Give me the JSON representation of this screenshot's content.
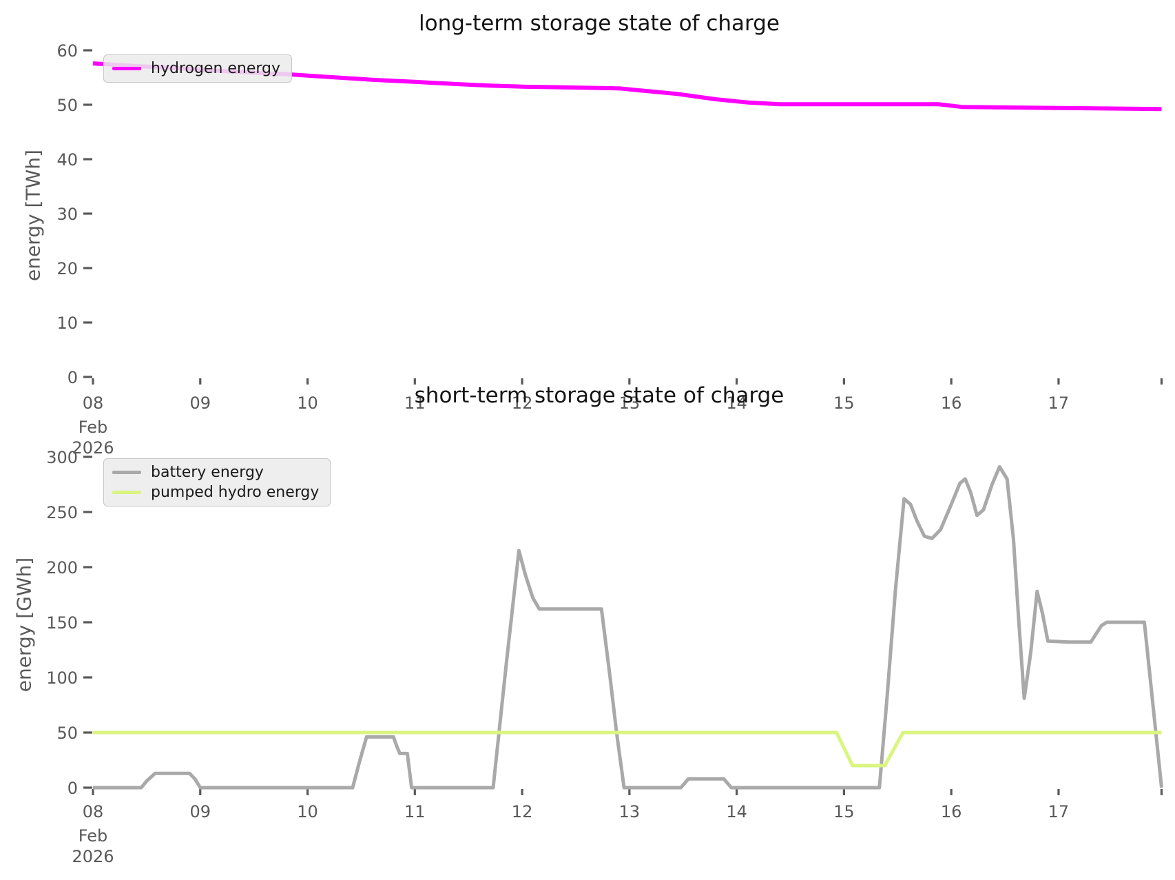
{
  "figure": {
    "background": "#ffffff",
    "tick_color": "#595959",
    "title_color": "#141414"
  },
  "chart_data": [
    {
      "type": "line",
      "title": "long-term storage state of charge",
      "xlabel": "",
      "ylabel": "energy [TWh]",
      "ylim": [
        0,
        60
      ],
      "yticks": [
        0,
        10,
        20,
        30,
        40,
        50,
        60
      ],
      "x_axis": {
        "tick_days": [
          8,
          9,
          10,
          11,
          12,
          13,
          14,
          15,
          16,
          17
        ],
        "tick_labels": [
          "08",
          "09",
          "10",
          "11",
          "12",
          "13",
          "14",
          "15",
          "16",
          "17"
        ],
        "first_tick_sublabels": [
          "Feb",
          "2026"
        ],
        "axis_end_day": 17.96
      },
      "grid": false,
      "legend": {
        "position": "upper left",
        "entries": [
          {
            "label": "hydrogen energy",
            "color": "#ff00ff"
          }
        ]
      },
      "series": [
        {
          "name": "hydrogen energy",
          "color": "#ff00ff",
          "width": 6,
          "unit": "TWh",
          "points": [
            [
              8.0,
              57.6
            ],
            [
              8.4,
              57.1
            ],
            [
              8.8,
              56.7
            ],
            [
              9.2,
              56.2
            ],
            [
              9.6,
              55.8
            ],
            [
              9.81,
              55.6
            ],
            [
              10.2,
              55.1
            ],
            [
              10.6,
              54.6
            ],
            [
              11.0,
              54.2
            ],
            [
              11.39,
              53.8
            ],
            [
              11.7,
              53.5
            ],
            [
              12.03,
              53.3
            ],
            [
              12.4,
              53.2
            ],
            [
              12.91,
              53.0
            ],
            [
              13.12,
              52.6
            ],
            [
              13.44,
              52.0
            ],
            [
              13.81,
              51.0
            ],
            [
              14.11,
              50.4
            ],
            [
              14.4,
              50.1
            ],
            [
              15.88,
              50.1
            ],
            [
              16.1,
              49.6
            ],
            [
              16.5,
              49.5
            ],
            [
              17.0,
              49.4
            ],
            [
              17.5,
              49.3
            ],
            [
              17.96,
              49.2
            ]
          ]
        }
      ]
    },
    {
      "type": "line",
      "title": "short-term storage state of charge",
      "xlabel": "",
      "ylabel": "energy [GWh]",
      "ylim": [
        0,
        300
      ],
      "yticks": [
        0,
        50,
        100,
        150,
        200,
        250,
        300
      ],
      "x_axis": {
        "tick_days": [
          8,
          9,
          10,
          11,
          12,
          13,
          14,
          15,
          16,
          17
        ],
        "tick_labels": [
          "08",
          "09",
          "10",
          "11",
          "12",
          "13",
          "14",
          "15",
          "16",
          "17"
        ],
        "first_tick_sublabels": [
          "Feb",
          "2026"
        ],
        "axis_end_day": 17.96
      },
      "grid": false,
      "legend": {
        "position": "upper left",
        "entries": [
          {
            "label": "battery energy",
            "color": "#a9a9a9"
          },
          {
            "label": "pumped hydro energy",
            "color": "#d9f57f"
          }
        ]
      },
      "series": [
        {
          "name": "battery energy",
          "color": "#a9a9a9",
          "width": 5,
          "unit": "GWh",
          "points": [
            [
              8.0,
              0
            ],
            [
              8.45,
              0
            ],
            [
              8.5,
              6
            ],
            [
              8.58,
              13
            ],
            [
              8.9,
              13
            ],
            [
              8.95,
              8
            ],
            [
              9.0,
              0
            ],
            [
              9.5,
              0
            ],
            [
              10.0,
              0
            ],
            [
              10.42,
              0
            ],
            [
              10.48,
              22
            ],
            [
              10.55,
              46
            ],
            [
              10.8,
              46
            ],
            [
              10.83,
              38
            ],
            [
              10.86,
              31
            ],
            [
              10.93,
              31
            ],
            [
              10.97,
              0
            ],
            [
              11.3,
              0
            ],
            [
              11.73,
              0
            ],
            [
              11.85,
              110
            ],
            [
              11.97,
              215
            ],
            [
              12.03,
              193
            ],
            [
              12.1,
              172
            ],
            [
              12.16,
              162
            ],
            [
              12.45,
              162
            ],
            [
              12.74,
              162
            ],
            [
              12.82,
              100
            ],
            [
              12.88,
              50
            ],
            [
              12.95,
              0
            ],
            [
              13.2,
              0
            ],
            [
              13.48,
              0
            ],
            [
              13.55,
              8
            ],
            [
              13.88,
              8
            ],
            [
              13.95,
              0
            ],
            [
              14.4,
              0
            ],
            [
              14.9,
              0
            ],
            [
              15.33,
              0
            ],
            [
              15.4,
              80
            ],
            [
              15.48,
              180
            ],
            [
              15.56,
              262
            ],
            [
              15.62,
              257
            ],
            [
              15.68,
              242
            ],
            [
              15.75,
              228
            ],
            [
              15.82,
              226
            ],
            [
              15.9,
              234
            ],
            [
              16.0,
              257
            ],
            [
              16.08,
              276
            ],
            [
              16.13,
              280
            ],
            [
              16.18,
              268
            ],
            [
              16.24,
              247
            ],
            [
              16.3,
              252
            ],
            [
              16.38,
              275
            ],
            [
              16.45,
              291
            ],
            [
              16.52,
              280
            ],
            [
              16.58,
              225
            ],
            [
              16.63,
              150
            ],
            [
              16.68,
              81
            ],
            [
              16.74,
              122
            ],
            [
              16.8,
              178
            ],
            [
              16.85,
              158
            ],
            [
              16.9,
              133
            ],
            [
              17.1,
              132
            ],
            [
              17.3,
              132
            ],
            [
              17.4,
              147
            ],
            [
              17.45,
              150
            ],
            [
              17.65,
              150
            ],
            [
              17.8,
              150
            ],
            [
              17.88,
              75
            ],
            [
              17.96,
              0
            ]
          ]
        },
        {
          "name": "pumped hydro energy",
          "color": "#d9f57f",
          "width": 5,
          "unit": "GWh",
          "points": [
            [
              8.0,
              50
            ],
            [
              14.93,
              50
            ],
            [
              15.08,
              20
            ],
            [
              15.38,
              20
            ],
            [
              15.55,
              50
            ],
            [
              17.96,
              50
            ]
          ]
        }
      ]
    }
  ]
}
